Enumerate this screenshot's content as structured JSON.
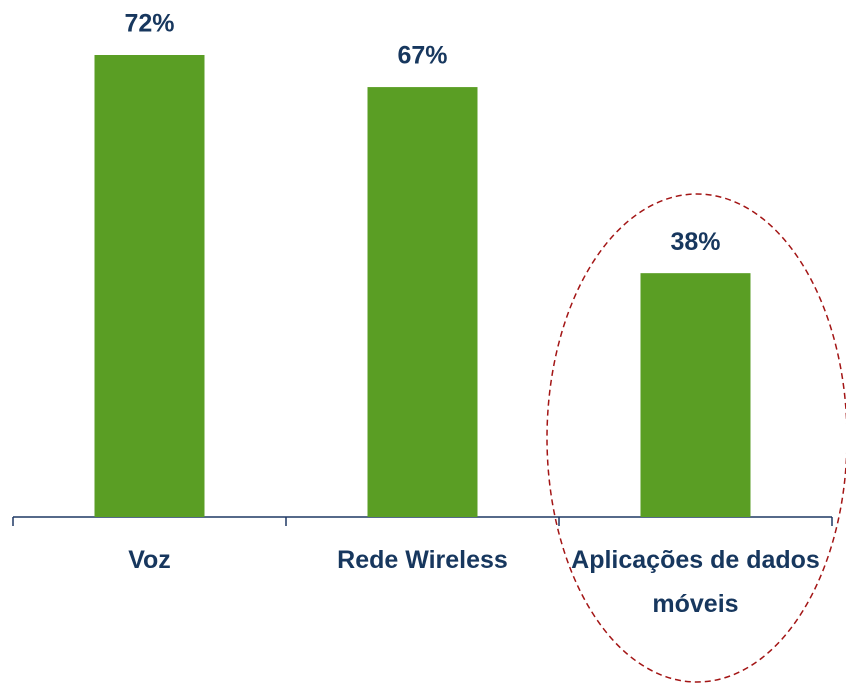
{
  "chart_data": {
    "type": "bar",
    "categories": [
      "Voz",
      "Rede Wireless",
      "Aplicações de dados móveis"
    ],
    "values": [
      72,
      67,
      38
    ],
    "value_labels": [
      "72%",
      "67%",
      "38%"
    ],
    "color": "#5a9e24"
  }
}
